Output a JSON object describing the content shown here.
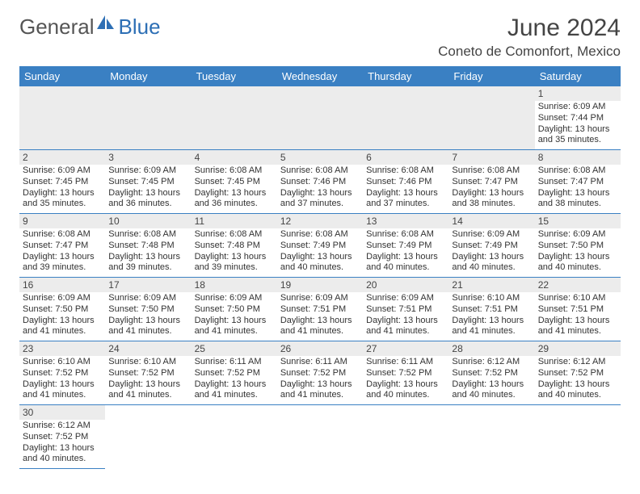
{
  "logo": {
    "part1": "General",
    "part2": "Blue",
    "icon_color": "#2d6fb5"
  },
  "title": "June 2024",
  "location": "Coneto de Comonfort, Mexico",
  "colors": {
    "header_bg": "#3a80c3",
    "header_text": "#ffffff",
    "rule": "#3a80c3",
    "daynum_bg": "#ececec",
    "body_text": "#333333"
  },
  "weekdays": [
    "Sunday",
    "Monday",
    "Tuesday",
    "Wednesday",
    "Thursday",
    "Friday",
    "Saturday"
  ],
  "weeks": [
    [
      null,
      null,
      null,
      null,
      null,
      null,
      {
        "n": "1",
        "sunrise": "6:09 AM",
        "sunset": "7:44 PM",
        "dl": "13 hours and 35 minutes."
      }
    ],
    [
      {
        "n": "2",
        "sunrise": "6:09 AM",
        "sunset": "7:45 PM",
        "dl": "13 hours and 35 minutes."
      },
      {
        "n": "3",
        "sunrise": "6:09 AM",
        "sunset": "7:45 PM",
        "dl": "13 hours and 36 minutes."
      },
      {
        "n": "4",
        "sunrise": "6:08 AM",
        "sunset": "7:45 PM",
        "dl": "13 hours and 36 minutes."
      },
      {
        "n": "5",
        "sunrise": "6:08 AM",
        "sunset": "7:46 PM",
        "dl": "13 hours and 37 minutes."
      },
      {
        "n": "6",
        "sunrise": "6:08 AM",
        "sunset": "7:46 PM",
        "dl": "13 hours and 37 minutes."
      },
      {
        "n": "7",
        "sunrise": "6:08 AM",
        "sunset": "7:47 PM",
        "dl": "13 hours and 38 minutes."
      },
      {
        "n": "8",
        "sunrise": "6:08 AM",
        "sunset": "7:47 PM",
        "dl": "13 hours and 38 minutes."
      }
    ],
    [
      {
        "n": "9",
        "sunrise": "6:08 AM",
        "sunset": "7:47 PM",
        "dl": "13 hours and 39 minutes."
      },
      {
        "n": "10",
        "sunrise": "6:08 AM",
        "sunset": "7:48 PM",
        "dl": "13 hours and 39 minutes."
      },
      {
        "n": "11",
        "sunrise": "6:08 AM",
        "sunset": "7:48 PM",
        "dl": "13 hours and 39 minutes."
      },
      {
        "n": "12",
        "sunrise": "6:08 AM",
        "sunset": "7:49 PM",
        "dl": "13 hours and 40 minutes."
      },
      {
        "n": "13",
        "sunrise": "6:08 AM",
        "sunset": "7:49 PM",
        "dl": "13 hours and 40 minutes."
      },
      {
        "n": "14",
        "sunrise": "6:09 AM",
        "sunset": "7:49 PM",
        "dl": "13 hours and 40 minutes."
      },
      {
        "n": "15",
        "sunrise": "6:09 AM",
        "sunset": "7:50 PM",
        "dl": "13 hours and 40 minutes."
      }
    ],
    [
      {
        "n": "16",
        "sunrise": "6:09 AM",
        "sunset": "7:50 PM",
        "dl": "13 hours and 41 minutes."
      },
      {
        "n": "17",
        "sunrise": "6:09 AM",
        "sunset": "7:50 PM",
        "dl": "13 hours and 41 minutes."
      },
      {
        "n": "18",
        "sunrise": "6:09 AM",
        "sunset": "7:50 PM",
        "dl": "13 hours and 41 minutes."
      },
      {
        "n": "19",
        "sunrise": "6:09 AM",
        "sunset": "7:51 PM",
        "dl": "13 hours and 41 minutes."
      },
      {
        "n": "20",
        "sunrise": "6:09 AM",
        "sunset": "7:51 PM",
        "dl": "13 hours and 41 minutes."
      },
      {
        "n": "21",
        "sunrise": "6:10 AM",
        "sunset": "7:51 PM",
        "dl": "13 hours and 41 minutes."
      },
      {
        "n": "22",
        "sunrise": "6:10 AM",
        "sunset": "7:51 PM",
        "dl": "13 hours and 41 minutes."
      }
    ],
    [
      {
        "n": "23",
        "sunrise": "6:10 AM",
        "sunset": "7:52 PM",
        "dl": "13 hours and 41 minutes."
      },
      {
        "n": "24",
        "sunrise": "6:10 AM",
        "sunset": "7:52 PM",
        "dl": "13 hours and 41 minutes."
      },
      {
        "n": "25",
        "sunrise": "6:11 AM",
        "sunset": "7:52 PM",
        "dl": "13 hours and 41 minutes."
      },
      {
        "n": "26",
        "sunrise": "6:11 AM",
        "sunset": "7:52 PM",
        "dl": "13 hours and 41 minutes."
      },
      {
        "n": "27",
        "sunrise": "6:11 AM",
        "sunset": "7:52 PM",
        "dl": "13 hours and 40 minutes."
      },
      {
        "n": "28",
        "sunrise": "6:12 AM",
        "sunset": "7:52 PM",
        "dl": "13 hours and 40 minutes."
      },
      {
        "n": "29",
        "sunrise": "6:12 AM",
        "sunset": "7:52 PM",
        "dl": "13 hours and 40 minutes."
      }
    ],
    [
      {
        "n": "30",
        "sunrise": "6:12 AM",
        "sunset": "7:52 PM",
        "dl": "13 hours and 40 minutes."
      },
      null,
      null,
      null,
      null,
      null,
      null
    ]
  ],
  "labels": {
    "sunrise": "Sunrise: ",
    "sunset": "Sunset: ",
    "daylight": "Daylight: "
  }
}
